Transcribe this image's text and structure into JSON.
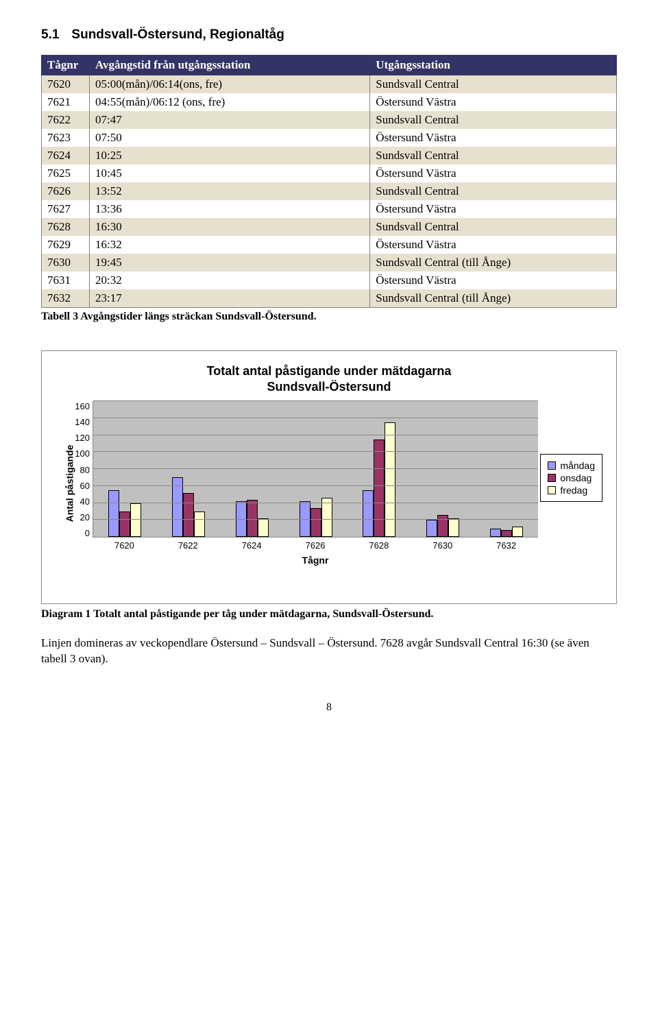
{
  "heading": {
    "number": "5.1",
    "text": "Sundsvall-Östersund, Regionaltåg"
  },
  "table": {
    "headers": [
      "Tågnr",
      "Avgångstid från utgångsstation",
      "Utgångsstation"
    ],
    "rows": [
      [
        "7620",
        "05:00(mån)/06:14(ons, fre)",
        "Sundsvall Central"
      ],
      [
        "7621",
        "04:55(mån)/06:12 (ons, fre)",
        "Östersund Västra"
      ],
      [
        "7622",
        "07:47",
        "Sundsvall Central"
      ],
      [
        "7623",
        "07:50",
        "Östersund Västra"
      ],
      [
        "7624",
        "10:25",
        "Sundsvall Central"
      ],
      [
        "7625",
        "10:45",
        "Östersund Västra"
      ],
      [
        "7626",
        "13:52",
        "Sundsvall Central"
      ],
      [
        "7627",
        "13:36",
        "Östersund Västra"
      ],
      [
        "7628",
        "16:30",
        "Sundsvall Central"
      ],
      [
        "7629",
        "16:32",
        "Östersund Västra"
      ],
      [
        "7630",
        "19:45",
        "Sundsvall Central (till Ånge)"
      ],
      [
        "7631",
        "20:32",
        "Östersund Västra"
      ],
      [
        "7632",
        "23:17",
        "Sundsvall Central (till Ånge)"
      ]
    ],
    "caption": "Tabell 3 Avgångstider längs sträckan Sundsvall-Östersund."
  },
  "chart": {
    "type": "bar",
    "title_line1": "Totalt antal påstigande under mätdagarna",
    "title_line2": "Sundsvall-Östersund",
    "ylabel": "Antal påstigande",
    "xlabel": "Tågnr",
    "categories": [
      "7620",
      "7622",
      "7624",
      "7626",
      "7628",
      "7630",
      "7632"
    ],
    "series": [
      {
        "name": "måndag",
        "color": "#9999ff",
        "values": [
          55,
          70,
          42,
          42,
          55,
          20,
          10
        ]
      },
      {
        "name": "onsdag",
        "color": "#993366",
        "values": [
          30,
          52,
          44,
          34,
          115,
          26,
          8
        ]
      },
      {
        "name": "fredag",
        "color": "#ffffcc",
        "values": [
          40,
          30,
          22,
          46,
          135,
          22,
          12
        ]
      }
    ],
    "ylim": [
      0,
      160
    ],
    "ytick_step": 20,
    "background_color": "#c0c0c0",
    "grid_color": "#888888",
    "legend_labels": [
      "måndag",
      "onsdag",
      "fredag"
    ]
  },
  "diagram_caption": "Diagram 1 Totalt antal påstigande per tåg under mätdagarna, Sundsvall-Östersund.",
  "body_text": "Linjen domineras av veckopendlare Östersund – Sundsvall – Östersund. 7628 avgår Sundsvall Central 16:30 (se även tabell 3 ovan).",
  "page_number": "8"
}
